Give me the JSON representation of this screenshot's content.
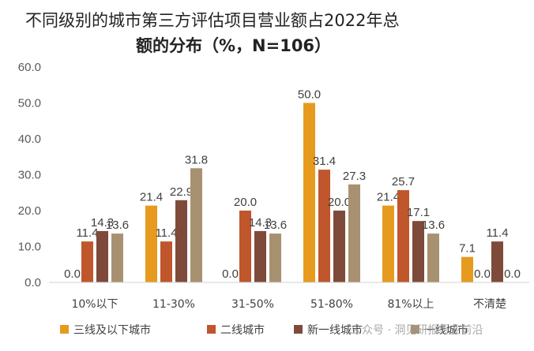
{
  "chart_data": {
    "type": "bar",
    "title_line1": "不同级别的城市第三方评估项目营业额占2022年总",
    "title_line2": "额的分布（%，N=106）",
    "categories": [
      "10%以下",
      "11-30%",
      "31-50%",
      "51-80%",
      "81%以上",
      "不清楚"
    ],
    "series": [
      {
        "name": "三线及以下城市",
        "color": "#E69A1E",
        "values": [
          0.0,
          21.4,
          0.0,
          50.0,
          21.4,
          7.1
        ]
      },
      {
        "name": "二线城市",
        "color": "#C0562C",
        "values": [
          11.4,
          11.4,
          20.0,
          31.4,
          25.7,
          0.0
        ]
      },
      {
        "name": "新一线城市",
        "color": "#7E4A3A",
        "values": [
          14.3,
          22.9,
          14.3,
          20.0,
          17.1,
          11.4
        ]
      },
      {
        "name": "一线城市",
        "color": "#A89170",
        "values": [
          13.6,
          31.8,
          13.6,
          27.3,
          13.6,
          0.0
        ]
      }
    ],
    "y_ticks": [
      "0.0",
      "10.0",
      "20.0",
      "30.0",
      "40.0",
      "50.0",
      "60.0"
    ],
    "ylim": [
      0,
      60
    ],
    "grid": false,
    "legend_position": "bottom"
  },
  "watermark": "公众号 · 洞见研报行业前沿"
}
